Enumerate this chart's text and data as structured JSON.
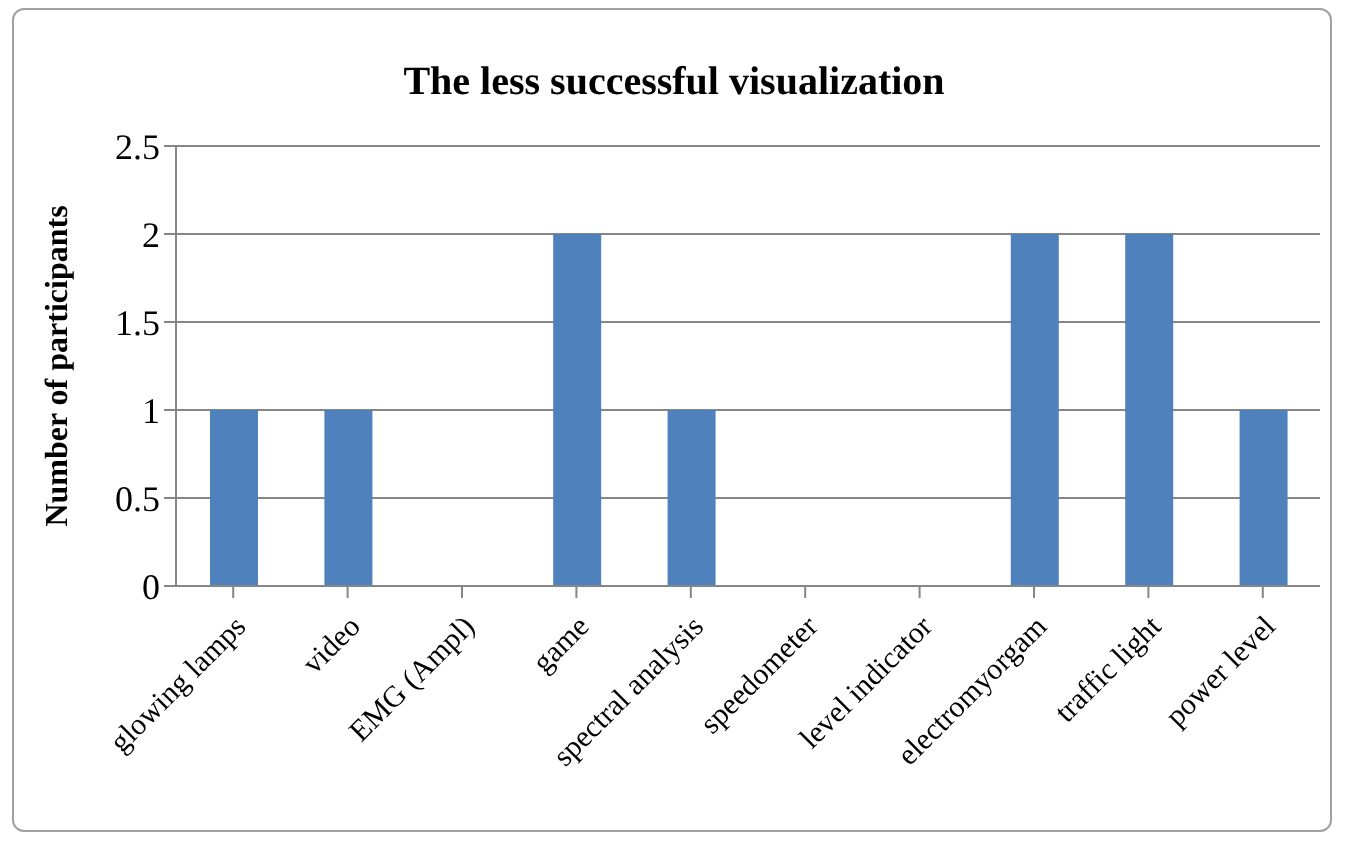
{
  "chart_data": {
    "type": "bar",
    "title": "The less successful visualization",
    "ylabel": "Number of participants",
    "categories": [
      "glowing lamps",
      "video",
      "EMG (Ampl)",
      "game",
      "spectral analysis",
      "speedometer",
      "level indicator",
      "electromyorgam",
      "traffic light",
      "power level"
    ],
    "values": [
      1,
      1,
      0,
      2,
      1,
      0,
      0,
      2,
      2,
      1
    ],
    "color": "#4f81bd",
    "ylim": [
      0,
      2.5
    ],
    "yticks": [
      0,
      0.5,
      1,
      1.5,
      2,
      2.5
    ],
    "grid": "y",
    "legend": false
  }
}
